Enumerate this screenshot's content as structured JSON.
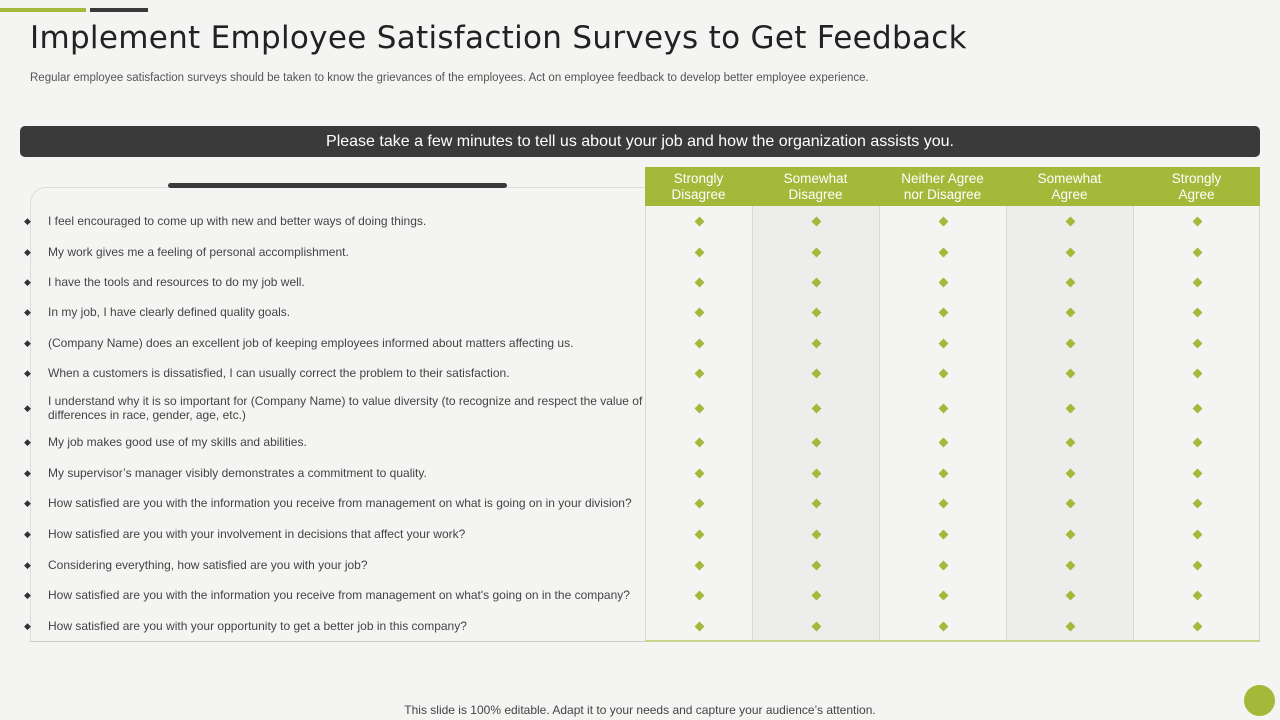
{
  "header": {
    "title": "Implement Employee Satisfaction Surveys to Get Feedback",
    "subtitle": "Regular employee satisfaction surveys should be taken to know the grievances of the employees. Act on employee feedback to develop better employee experience."
  },
  "banner": {
    "text": "Please take a few minutes to tell us about your job and how the organization assists you."
  },
  "colors": {
    "accent": "#a4b93a",
    "dark": "#3a3a3a",
    "background": "#f4f4f3"
  },
  "bullet_icon": "diamond-bullet-icon",
  "rating_icon": "diamond-rating-icon",
  "columns": [
    {
      "line1": "Strongly",
      "line2": "Disagree"
    },
    {
      "line1": "Somewhat",
      "line2": "Disagree"
    },
    {
      "line1": "Neither Agree",
      "line2": "nor Disagree"
    },
    {
      "line1": "Somewhat",
      "line2": "Agree"
    },
    {
      "line1": "Strongly",
      "line2": "Agree"
    }
  ],
  "questions": [
    "I feel encouraged to come up with new and better ways of doing things.",
    "My work gives me a feeling of personal accomplishment.",
    "I have the tools and resources to do my job well.",
    "In my job, I have clearly defined quality goals.",
    "(Company Name) does an excellent job of keeping employees informed about matters affecting us.",
    "When a customers is dissatisfied, I can usually correct the problem to their satisfaction.",
    "I understand why it is so important for (Company Name) to value diversity (to recognize and respect the value of differences in race, gender, age, etc.)",
    "My job makes good use of my skills and abilities.",
    "My supervisor’s manager visibly demonstrates a commitment to quality.",
    "How satisfied are you with the information you receive from management on what is going on in your division?",
    "How satisfied are you with your involvement in decisions that affect your work?",
    "Considering everything, how satisfied are you with your job?",
    "How satisfied are you with the information you receive from management on what's going on in the company?",
    "How satisfied are you with your opportunity to get a better job in this company?"
  ],
  "footer": {
    "text": "This slide is 100% editable. Adapt it to your needs and capture your audience’s attention."
  }
}
